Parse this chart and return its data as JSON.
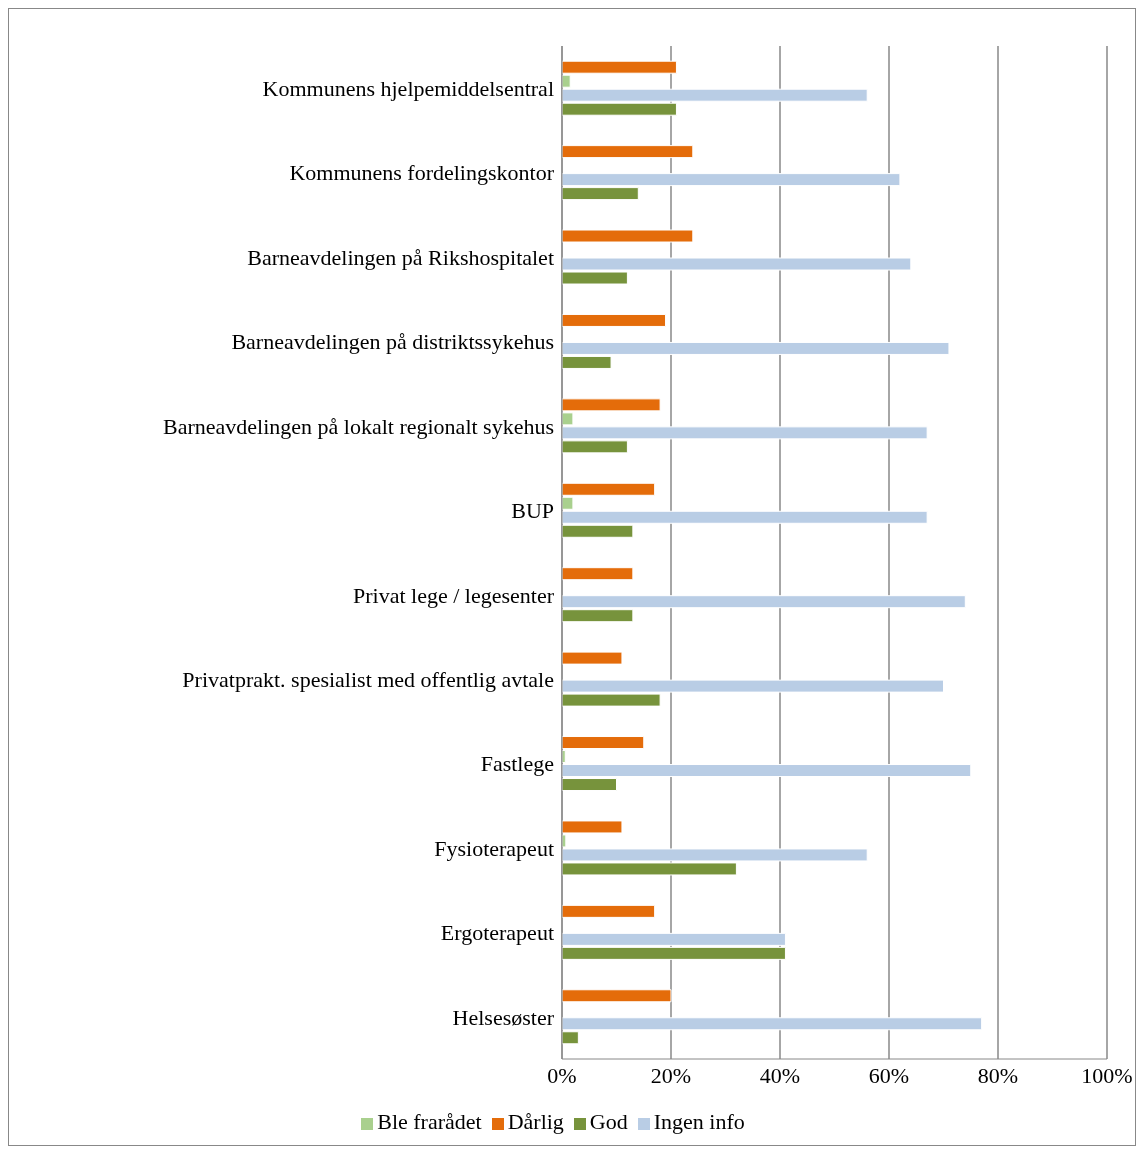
{
  "chart_data": {
    "type": "bar",
    "orientation": "horizontal",
    "categories": [
      "Kommunens hjelpemiddelsentral",
      "Kommunens fordelingskontor",
      "Barneavdelingen på Rikshospitalet",
      "Barneavdelingen på distriktssykehus",
      "Barneavdelingen på lokalt regionalt sykehus",
      "BUP",
      "Privat lege / legesenter",
      "Privatprakt. spesialist med offentlig avtale",
      "Fastlege",
      "Fysioterapeut",
      "Ergoterapeut",
      "Helsesøster"
    ],
    "series": [
      {
        "name": "Dårlig",
        "color": "#e46c0a",
        "values": [
          21,
          24,
          24,
          19,
          18,
          17,
          13,
          11,
          15,
          11,
          17,
          20
        ]
      },
      {
        "name": "Ble frarådet",
        "color": "#a9d08e",
        "values": [
          1.5,
          null,
          null,
          null,
          2,
          2,
          null,
          null,
          0.6,
          0.7,
          null,
          null
        ]
      },
      {
        "name": "Ingen info",
        "color": "#b9cde5",
        "values": [
          56,
          62,
          64,
          71,
          67,
          67,
          74,
          70,
          75,
          56,
          41,
          77
        ]
      },
      {
        "name": "God",
        "color": "#77933c",
        "values": [
          21,
          14,
          12,
          9,
          12,
          13,
          13,
          18,
          10,
          32,
          41,
          3
        ]
      }
    ],
    "xlim": [
      0,
      100
    ],
    "xticks": [
      {
        "value": 0,
        "label": "0%"
      },
      {
        "value": 20,
        "label": "20%"
      },
      {
        "value": 40,
        "label": "40%"
      },
      {
        "value": 60,
        "label": "60%"
      },
      {
        "value": 80,
        "label": "80%"
      },
      {
        "value": 100,
        "label": "100%"
      }
    ],
    "grid": "x",
    "legend": "bottom"
  }
}
